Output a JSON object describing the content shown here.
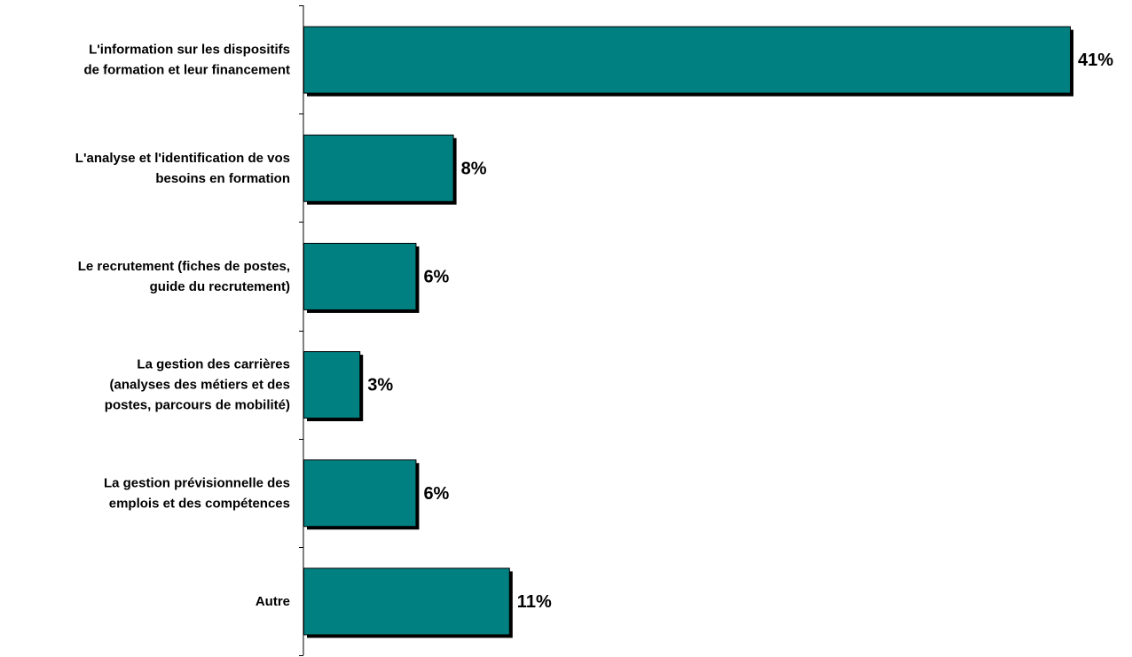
{
  "chart_data": {
    "type": "bar",
    "orientation": "horizontal",
    "categories": [
      [
        "L'information sur les dispositifs",
        "de formation et leur financement"
      ],
      [
        "L'analyse et l'identification de vos",
        "besoins en formation"
      ],
      [
        "Le recrutement (fiches de postes,",
        "guide du recrutement)"
      ],
      [
        "La gestion des carrières",
        "(analyses des métiers et des",
        "postes, parcours de mobilité)"
      ],
      [
        "La gestion prévisionnelle des",
        "emplois et des compétences"
      ],
      [
        "Autre"
      ]
    ],
    "values": [
      41,
      8,
      6,
      3,
      6,
      11
    ],
    "value_labels": [
      "41%",
      "8%",
      "6%",
      "3%",
      "6%",
      "11%"
    ],
    "title": "",
    "xlabel": "",
    "ylabel": "",
    "grid": false,
    "legend": "none",
    "colors": {
      "bar": "#008080",
      "bar_stroke": "#000000",
      "shadow": "#000000",
      "axis": "#000000"
    }
  }
}
